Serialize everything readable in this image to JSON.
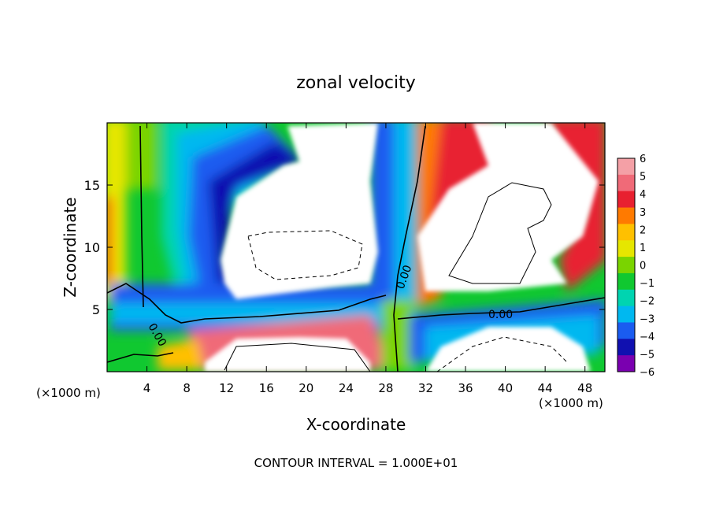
{
  "chart_data": {
    "type": "heatmap",
    "title": "zonal velocity",
    "xlabel": "X-coordinate",
    "ylabel": "Z-coordinate",
    "x_unit_left": "(×1000 m)",
    "x_unit_right": "(×1000 m)",
    "xlim": [
      0,
      50
    ],
    "ylim": [
      0,
      20
    ],
    "x_ticks": [
      4,
      8,
      12,
      16,
      20,
      24,
      28,
      32,
      36,
      40,
      44,
      48
    ],
    "y_ticks": [
      5,
      10,
      15
    ],
    "colorbar": {
      "levels": [
        6,
        5,
        4,
        3,
        2,
        1,
        0,
        -1,
        -2,
        -3,
        -4,
        -5,
        -6
      ],
      "colors": [
        "#f4a0a6",
        "#f06a78",
        "#e82030",
        "#ff7a00",
        "#ffc000",
        "#e6e600",
        "#7ad400",
        "#10c830",
        "#00d4b0",
        "#00b8f0",
        "#1a5cf0",
        "#1010b0",
        "#7a00b0"
      ]
    },
    "contour_labels": [
      "0.00",
      "0.00",
      "0.00"
    ],
    "footer": "CONTOUR INTERVAL = 1.000E+01"
  }
}
